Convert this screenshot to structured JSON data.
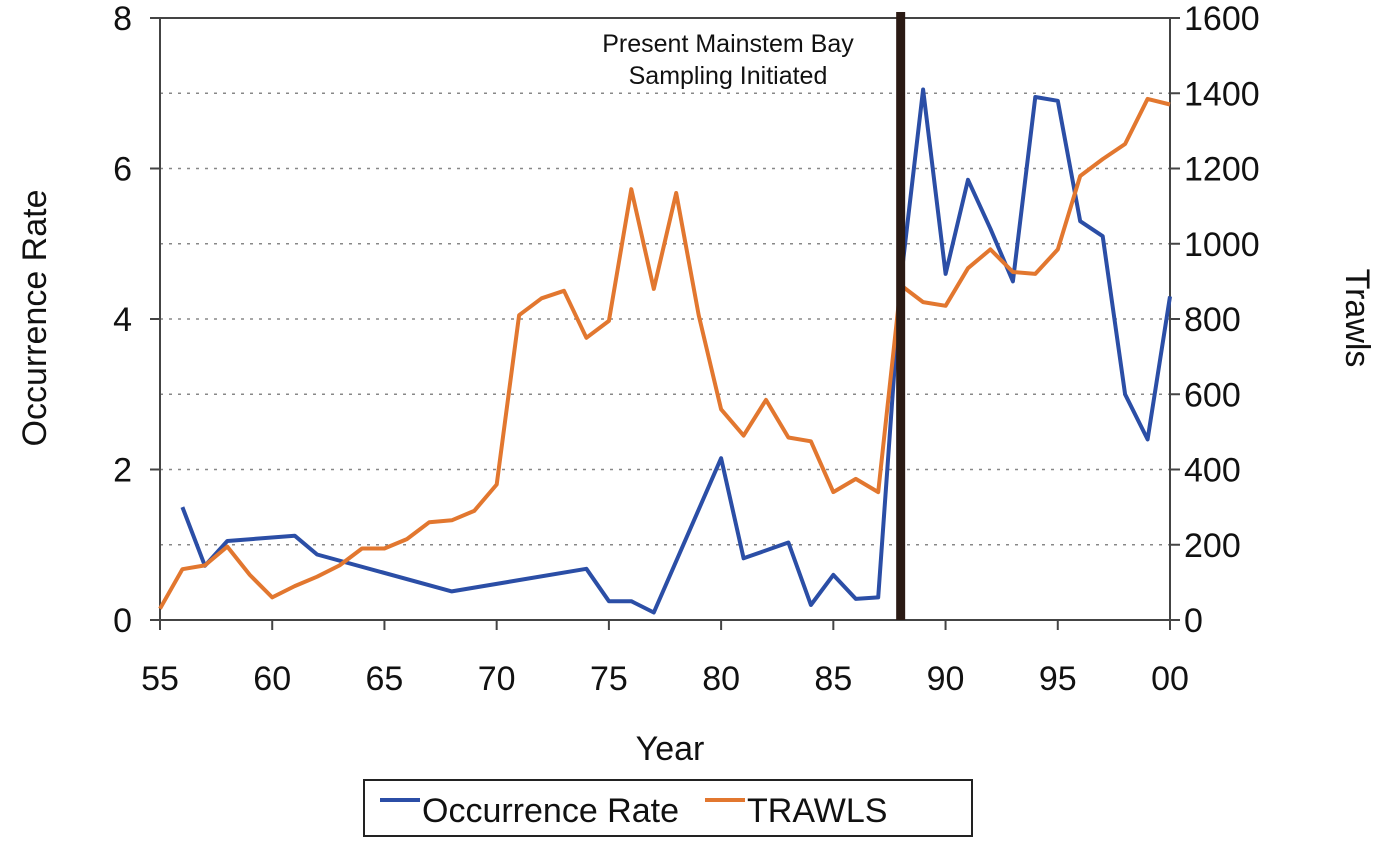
{
  "chart_data": {
    "type": "line",
    "xlabel": "Year",
    "ylabel": "Occurrence Rate",
    "y2label": "Trawls",
    "annotation": "Present Mainstem Bay Sampling Initiated",
    "vline_x": 88,
    "xlim": [
      55,
      100
    ],
    "xticks": [
      55,
      60,
      65,
      70,
      75,
      80,
      85,
      90,
      95,
      {
        "value": 100,
        "label": "00"
      }
    ],
    "ylim": [
      0,
      8
    ],
    "yticks": [
      0,
      2,
      4,
      6,
      8
    ],
    "y2lim": [
      0,
      1600
    ],
    "y2ticks": [
      0,
      200,
      400,
      600,
      800,
      1000,
      1200,
      1400,
      1600
    ],
    "grid": true,
    "legend": "bottom",
    "series": [
      {
        "name": "Occurrence Rate",
        "color": "#2b4ea6",
        "x": [
          56,
          57,
          58,
          61,
          62,
          68,
          74,
          75,
          76,
          77,
          80,
          81,
          83,
          84,
          85,
          86,
          87,
          88,
          89,
          90,
          91,
          92,
          93,
          94,
          95,
          96,
          97,
          98,
          99,
          100
        ],
        "values": [
          1.5,
          0.72,
          1.05,
          1.12,
          0.87,
          0.38,
          0.68,
          0.25,
          0.25,
          0.1,
          2.15,
          0.82,
          1.03,
          0.2,
          0.6,
          0.28,
          0.3,
          4.5,
          7.05,
          4.6,
          5.85,
          5.2,
          4.5,
          6.95,
          6.9,
          5.3,
          5.1,
          3.0,
          2.4,
          4.3
        ]
      },
      {
        "name": "TRAWLS",
        "color": "#e2772f",
        "axis": "y2",
        "x": [
          55,
          56,
          57,
          58,
          59,
          60,
          61,
          62,
          63,
          64,
          65,
          66,
          67,
          68,
          69,
          70,
          71,
          72,
          73,
          74,
          75,
          76,
          77,
          78,
          79,
          80,
          81,
          82,
          83,
          84,
          85,
          86,
          87,
          88,
          89,
          90,
          91,
          92,
          93,
          94,
          95,
          96,
          97,
          98,
          99,
          100
        ],
        "values": [
          30,
          135,
          145,
          195,
          120,
          60,
          90,
          115,
          145,
          190,
          190,
          215,
          260,
          265,
          290,
          360,
          810,
          855,
          875,
          750,
          795,
          1145,
          880,
          1135,
          810,
          560,
          490,
          585,
          485,
          475,
          340,
          375,
          340,
          890,
          845,
          835,
          935,
          985,
          925,
          920,
          985,
          1180,
          1225,
          1265,
          1385,
          1370
        ]
      }
    ]
  }
}
